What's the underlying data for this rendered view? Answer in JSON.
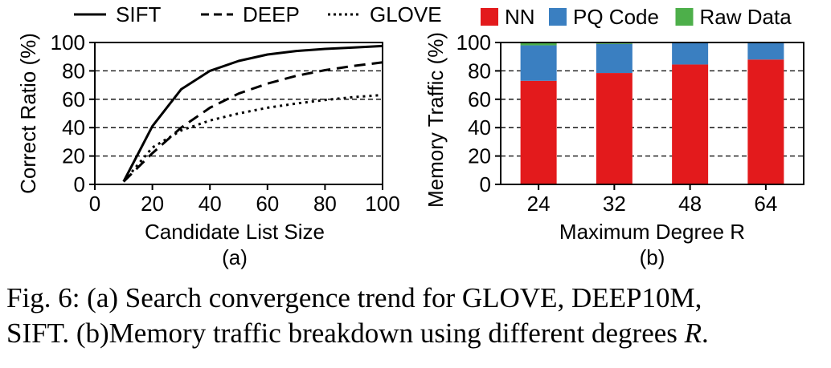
{
  "chart_data": [
    {
      "type": "line",
      "xlabel": "Candidate List Size",
      "ylabel": "Correct Ratio (%)",
      "sublabel": "(a)",
      "xlim": [
        0,
        100
      ],
      "ylim": [
        0,
        100
      ],
      "xticks": [
        0,
        20,
        40,
        60,
        80,
        100
      ],
      "yticks": [
        0,
        20,
        40,
        60,
        80,
        100
      ],
      "grid": "horizontal dashed",
      "legend": "top",
      "series": [
        {
          "name": "SIFT",
          "style": "solid",
          "x": [
            10,
            20,
            30,
            40,
            50,
            60,
            70,
            80,
            90,
            100
          ],
          "y": [
            2,
            41,
            67,
            80,
            87,
            91.5,
            94,
            95.5,
            96.5,
            97.5
          ]
        },
        {
          "name": "DEEP",
          "style": "dashed",
          "x": [
            10,
            20,
            30,
            40,
            50,
            60,
            70,
            80,
            90,
            100
          ],
          "y": [
            2,
            22,
            40,
            54,
            64,
            71,
            76.5,
            80.5,
            83.5,
            86
          ]
        },
        {
          "name": "GLOVE",
          "style": "dotted",
          "x": [
            10,
            20,
            30,
            40,
            50,
            60,
            70,
            80,
            90,
            100
          ],
          "y": [
            2,
            26,
            38,
            45,
            50,
            54,
            57,
            59.5,
            61.5,
            63
          ]
        }
      ]
    },
    {
      "type": "bar",
      "stacked": true,
      "xlabel": "Maximum Degree R",
      "ylabel": "Memory Traffic (%)",
      "sublabel": "(b)",
      "ylim": [
        0,
        100
      ],
      "yticks": [
        0,
        20,
        40,
        60,
        80,
        100
      ],
      "grid": "horizontal dashed",
      "legend": "top",
      "categories": [
        "24",
        "32",
        "48",
        "64"
      ],
      "series": [
        {
          "name": "NN",
          "color": "#e31a1c",
          "values": [
            73,
            78.5,
            84.5,
            88
          ]
        },
        {
          "name": "PQ Code",
          "color": "#3a7fc1",
          "values": [
            25,
            20.5,
            15,
            11.5
          ]
        },
        {
          "name": "Raw Data",
          "color": "#4daf4a",
          "values": [
            2,
            1,
            0.5,
            0.5
          ]
        }
      ]
    }
  ],
  "caption": {
    "line1": "Fig. 6: (a) Search convergence trend for GLOVE, DEEP10M,",
    "line2_prefix": "SIFT. (b)Memory traffic breakdown using different degrees ",
    "line2_var": "R",
    "line2_suffix": "."
  }
}
